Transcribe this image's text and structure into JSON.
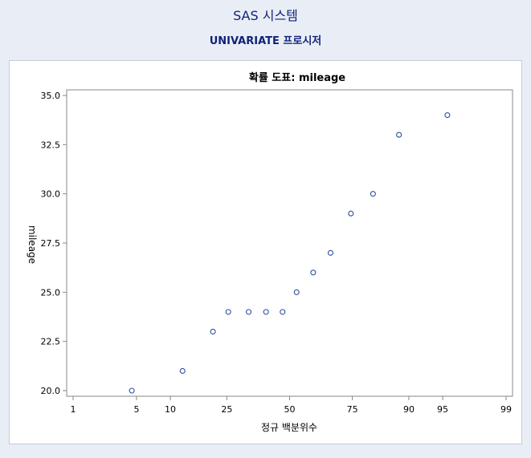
{
  "header": {
    "system_title": "SAS 시스템",
    "procedure_title": "UNIVARIATE 프로시저"
  },
  "colors": {
    "page_background": "#e9eef6",
    "title": "#112277",
    "marker": "#2a4f9a",
    "axis": "#888888"
  },
  "chart_data": {
    "type": "scatter",
    "title": "확률 도표: mileage",
    "xlabel": "정규 백분위수",
    "ylabel": "mileage",
    "xscale": "normal-probability",
    "xticks": [
      1,
      5,
      10,
      25,
      50,
      75,
      90,
      95,
      99
    ],
    "xtick_labels": [
      "1",
      "5",
      "10",
      "25",
      "50",
      "75",
      "90",
      "95",
      "99"
    ],
    "ylim": [
      20.0,
      35.0
    ],
    "yticks": [
      20.0,
      22.5,
      25.0,
      27.5,
      30.0,
      32.5,
      35.0
    ],
    "ytick_labels": [
      "20.0",
      "22.5",
      "25.0",
      "27.5",
      "30.0",
      "32.5",
      "35.0"
    ],
    "grid": false,
    "marker": "open-circle",
    "points": [
      {
        "x": 4.5,
        "y": 20
      },
      {
        "x": 12.5,
        "y": 21
      },
      {
        "x": 20.5,
        "y": 23
      },
      {
        "x": 25.5,
        "y": 24
      },
      {
        "x": 33.0,
        "y": 24
      },
      {
        "x": 40.0,
        "y": 24
      },
      {
        "x": 47.0,
        "y": 24
      },
      {
        "x": 53.0,
        "y": 25
      },
      {
        "x": 60.0,
        "y": 26
      },
      {
        "x": 67.0,
        "y": 27
      },
      {
        "x": 74.5,
        "y": 29
      },
      {
        "x": 81.5,
        "y": 30
      },
      {
        "x": 88.0,
        "y": 33
      },
      {
        "x": 95.5,
        "y": 34
      }
    ]
  }
}
